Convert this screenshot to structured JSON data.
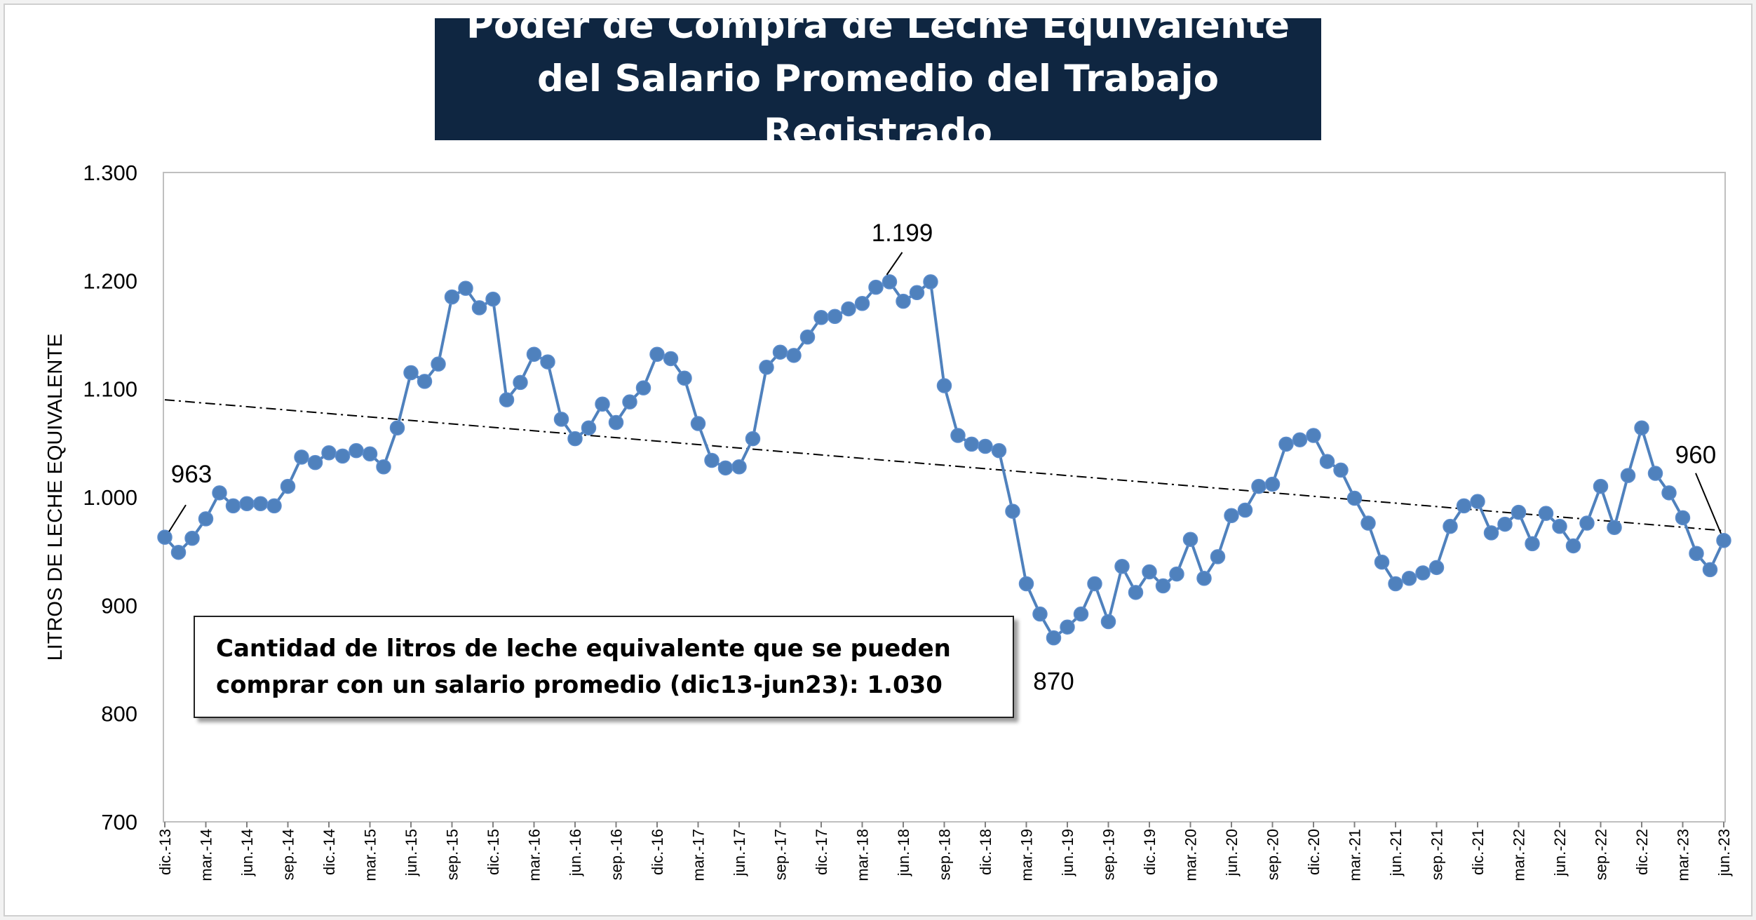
{
  "title_line1": "Poder de Compra de Leche Equivalente",
  "title_line2": "del Salario Promedio del Trabajo Registrado",
  "note_line1": "Cantidad de litros de leche equivalente que se pueden",
  "note_line2": "comprar con un salario promedio (dic13-jun23): 1.030",
  "colors": {
    "line": "#4f81bd",
    "marker": "#4f81bd",
    "trend": "#000000",
    "title_bg": "#0f2641",
    "background": "#ffffff"
  },
  "chart_data": {
    "type": "line",
    "title": "Poder de Compra de Leche Equivalente del Salario Promedio del Trabajo Registrado",
    "ylabel": "LITROS DE LECHE EQUIVALENTE",
    "xlabel": "",
    "ylim": [
      700,
      1300
    ],
    "yticks": [
      "700",
      "800",
      "900",
      "1.000",
      "1.100",
      "1.200",
      "1.300"
    ],
    "ytick_values": [
      700,
      800,
      900,
      1000,
      1100,
      1200,
      1300
    ],
    "grid": false,
    "legend": "none",
    "x_tick_labels": [
      "dic.-13",
      "mar.-14",
      "jun.-14",
      "sep.-14",
      "dic.-14",
      "mar.-15",
      "jun.-15",
      "sep.-15",
      "dic.-15",
      "mar.-16",
      "jun.-16",
      "sep.-16",
      "dic.-16",
      "mar.-17",
      "jun.-17",
      "sep.-17",
      "dic.-17",
      "mar.-18",
      "jun.-18",
      "sep.-18",
      "dic.-18",
      "mar.-19",
      "jun.-19",
      "sep.-19",
      "dic.-19",
      "mar.-20",
      "jun.-20",
      "sep.-20",
      "dic.-20",
      "mar.-21",
      "jun.-21",
      "sep.-21",
      "dic.-21",
      "mar.-22",
      "jun.-22",
      "sep.-22",
      "dic.-22",
      "mar.-23",
      "jun.-23"
    ],
    "series": [
      {
        "values": [
          963,
          949,
          962,
          980,
          1004,
          992,
          994,
          994,
          992,
          1010,
          1037,
          1032,
          1041,
          1038,
          1043,
          1040,
          1028,
          1064,
          1115,
          1107,
          1123,
          1185,
          1193,
          1175,
          1183,
          1090,
          1106,
          1132,
          1125,
          1072,
          1054,
          1064,
          1086,
          1069,
          1088,
          1101,
          1132,
          1128,
          1110,
          1068,
          1034,
          1027,
          1028,
          1054,
          1120,
          1134,
          1131,
          1148,
          1166,
          1167,
          1174,
          1179,
          1194,
          1199,
          1181,
          1189,
          1199,
          1103,
          1057,
          1049,
          1047,
          1043,
          987,
          920,
          892,
          870,
          880,
          892,
          920,
          885,
          936,
          912,
          931,
          918,
          929,
          961,
          925,
          945,
          983,
          988,
          1010,
          1012,
          1049,
          1053,
          1057,
          1033,
          1025,
          999,
          976,
          940,
          920,
          925,
          930,
          935,
          973,
          992,
          996,
          967,
          975,
          986,
          957,
          985,
          973,
          955,
          976,
          1010,
          972,
          1020,
          1064,
          1022,
          1004,
          981,
          948,
          933,
          960
        ]
      }
    ],
    "trendline": {
      "type": "linear",
      "start": 1090,
      "end": 969
    },
    "annotations": [
      {
        "text": "963",
        "index": 0
      },
      {
        "text": "1.199",
        "index": 53
      },
      {
        "text": "870",
        "index": 65
      },
      {
        "text": "960",
        "index": 114
      }
    ]
  }
}
